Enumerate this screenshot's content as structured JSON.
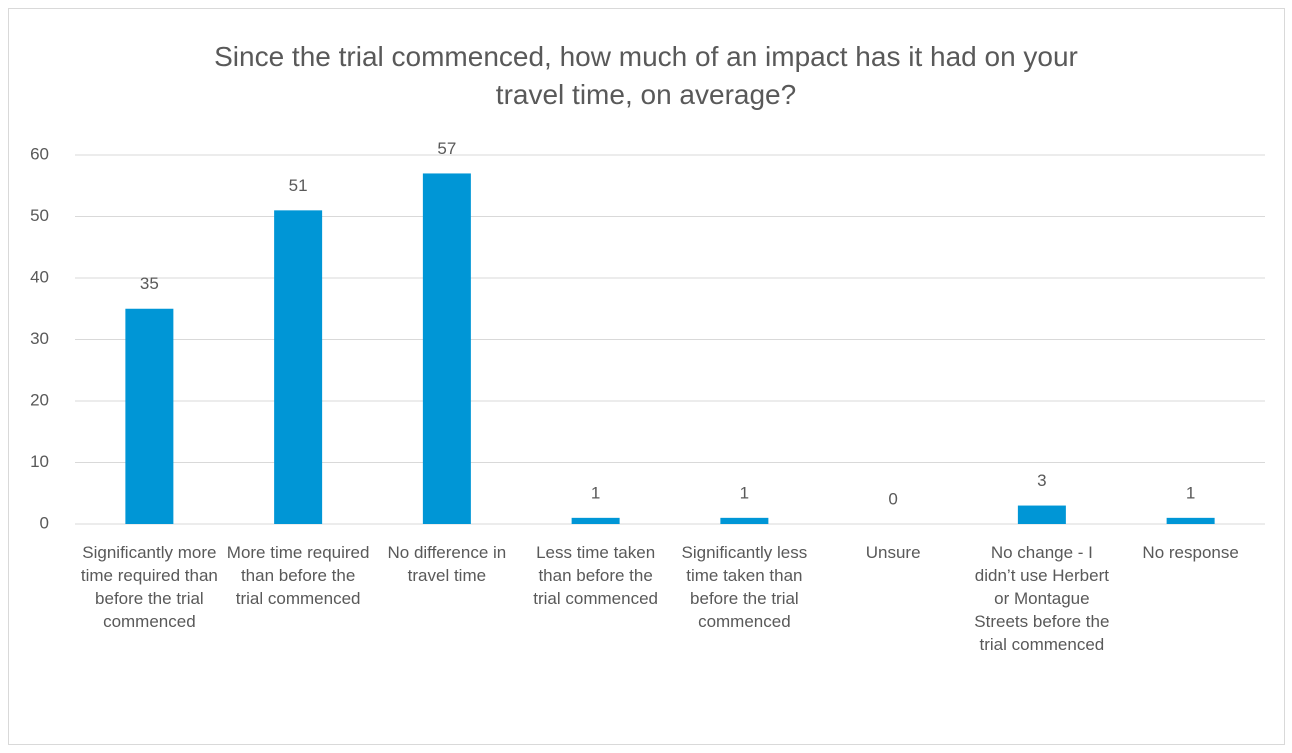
{
  "chart_data": {
    "type": "bar",
    "title": "Since the trial commenced, how much of an impact has it had on your travel time, on average?",
    "categories": [
      "Significantly more time required than before the trial commenced",
      "More time required than before the trial commenced",
      "No difference in travel time",
      "Less time taken than before the trial commenced",
      "Significantly less time taken than before the trial commenced",
      "Unsure",
      "No change - I didn’t use Herbert or Montague Streets before the trial commenced",
      "No response"
    ],
    "values": [
      35,
      51,
      57,
      1,
      1,
      0,
      3,
      1
    ],
    "color": "#0096d6",
    "ylim": [
      0,
      60
    ],
    "yticks": [
      0,
      10,
      20,
      30,
      40,
      50,
      60
    ],
    "grid": true
  }
}
